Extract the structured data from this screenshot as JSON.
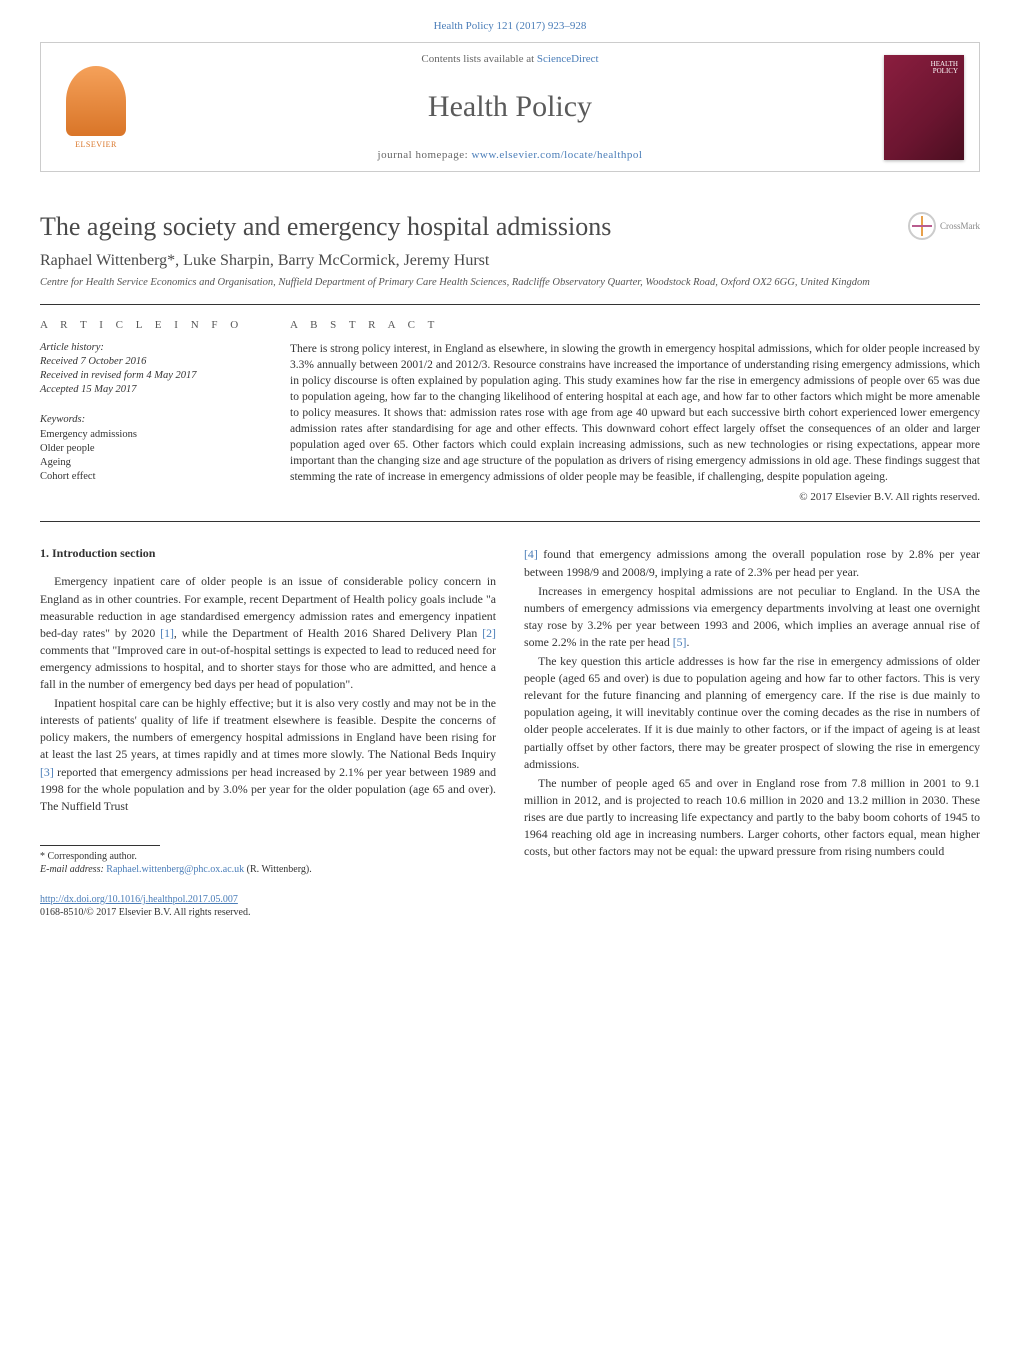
{
  "citation": "Health Policy 121 (2017) 923–928",
  "header": {
    "contents_prefix": "Contents lists available at ",
    "contents_link": "ScienceDirect",
    "journal_name": "Health Policy",
    "homepage_prefix": "journal homepage: ",
    "homepage_url": "www.elsevier.com/locate/healthpol",
    "elsevier": "ELSEVIER",
    "cover_title_line1": "HEALTH",
    "cover_title_line2": "POLICY"
  },
  "crossmark": "CrossMark",
  "article": {
    "title": "The ageing society and emergency hospital admissions",
    "authors": "Raphael Wittenberg*, Luke Sharpin, Barry McCormick, Jeremy Hurst",
    "affiliation": "Centre for Health Service Economics and Organisation, Nuffield Department of Primary Care Health Sciences, Radcliffe Observatory Quarter, Woodstock Road, Oxford OX2 6GG, United Kingdom"
  },
  "info": {
    "label": "A R T I C L E   I N F O",
    "history_hdr": "Article history:",
    "received": "Received 7 October 2016",
    "revised": "Received in revised form 4 May 2017",
    "accepted": "Accepted 15 May 2017",
    "keywords_hdr": "Keywords:",
    "kw1": "Emergency admissions",
    "kw2": "Older people",
    "kw3": "Ageing",
    "kw4": "Cohort effect"
  },
  "abstract": {
    "label": "A B S T R A C T",
    "text": "There is strong policy interest, in England as elsewhere, in slowing the growth in emergency hospital admissions, which for older people increased by 3.3% annually between 2001/2 and 2012/3. Resource constrains have increased the importance of understanding rising emergency admissions, which in policy discourse is often explained by population aging. This study examines how far the rise in emergency admissions of people over 65 was due to population ageing, how far to the changing likelihood of entering hospital at each age, and how far to other factors which might be more amenable to policy measures. It shows that: admission rates rose with age from age 40 upward but each successive birth cohort experienced lower emergency admission rates after standardising for age and other effects. This downward cohort effect largely offset the consequences of an older and larger population aged over 65. Other factors which could explain increasing admissions, such as new technologies or rising expectations, appear more important than the changing size and age structure of the population as drivers of rising emergency admissions in old age. These findings suggest that stemming the rate of increase in emergency admissions of older people may be feasible, if challenging, despite population ageing.",
    "copyright": "© 2017 Elsevier B.V. All rights reserved."
  },
  "body": {
    "heading": "1.  Introduction section",
    "left": {
      "p1a": "Emergency inpatient care of older people is an issue of considerable policy concern in England as in other countries. For example, recent Department of Health policy goals include \"a measurable reduction in age standardised emergency admission rates and emergency inpatient bed-day rates\" by 2020 ",
      "ref1": "[1]",
      "p1b": ", while the Department of Health 2016 Shared Delivery Plan ",
      "ref2": "[2]",
      "p1c": " comments that \"Improved care in out-of-hospital settings is expected to lead to reduced need for emergency admissions to hospital, and to shorter stays for those who are admitted, and hence a fall in the number of emergency bed days per head of population\".",
      "p2a": "Inpatient hospital care can be highly effective; but it is also very costly and may not be in the interests of patients' quality of life if treatment elsewhere is feasible. Despite the concerns of policy makers, the numbers of emergency hospital admissions in England have been rising for at least the last 25 years, at times rapidly and at times more slowly. The National Beds Inquiry ",
      "ref3": "[3]",
      "p2b": " reported that emergency admissions per head increased by 2.1% per year between 1989 and 1998 for the whole population and by 3.0% per year for the older population (age 65 and over). The Nuffield Trust"
    },
    "right": {
      "p1a": "",
      "ref4": "[4]",
      "p1b": " found that emergency admissions among the overall population rose by 2.8% per year between 1998/9 and 2008/9, implying a rate of 2.3% per head per year.",
      "p2a": "Increases in emergency hospital admissions are not peculiar to England. In the USA the numbers of emergency admissions via emergency departments involving at least one overnight stay rose by 3.2% per year between 1993 and 2006, which implies an average annual rise of some 2.2% in the rate per head ",
      "ref5": "[5]",
      "p2b": ".",
      "p3": "The key question this article addresses is how far the rise in emergency admissions of older people (aged 65 and over) is due to population ageing and how far to other factors. This is very relevant for the future financing and planning of emergency care. If the rise is due mainly to population ageing, it will inevitably continue over the coming decades as the rise in numbers of older people accelerates. If it is due mainly to other factors, or if the impact of ageing is at least partially offset by other factors, there may be greater prospect of slowing the rise in emergency admissions.",
      "p4": "The number of people aged 65 and over in England rose from 7.8 million in 2001 to 9.1 million in 2012, and is projected to reach 10.6 million in 2020 and 13.2 million in 2030. These rises are due partly to increasing life expectancy and partly to the baby boom cohorts of 1945 to 1964 reaching old age in increasing numbers. Larger cohorts, other factors equal, mean higher costs, but other factors may not be equal: the upward pressure from rising numbers could"
    }
  },
  "footnote": {
    "corr": "* Corresponding author.",
    "email_label": "E-mail address: ",
    "email": "Raphael.wittenberg@phc.ox.ac.uk",
    "email_suffix": " (R. Wittenberg)."
  },
  "footer": {
    "doi": "http://dx.doi.org/10.1016/j.healthpol.2017.05.007",
    "issn_line": "0168-8510/© 2017 Elsevier B.V. All rights reserved."
  },
  "colors": {
    "link": "#4a7db8",
    "text": "#333333",
    "rule": "#333333",
    "elsevier": "#d97528",
    "cover": "#8b1e3f"
  }
}
